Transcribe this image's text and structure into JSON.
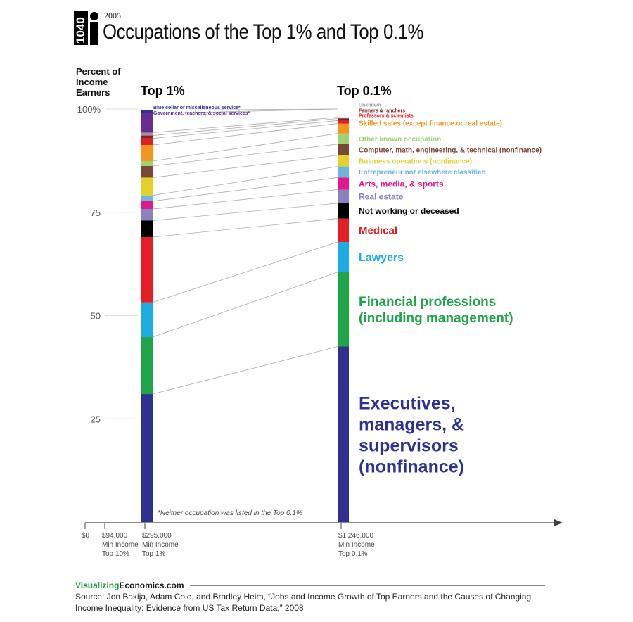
{
  "header": {
    "logo_text": "1040",
    "year": "2005",
    "title": "Occupations of the Top 1% and Top 0.1%",
    "y_axis_label_lines": [
      "Percent of",
      "Income",
      "Earners"
    ]
  },
  "chart_data": {
    "type": "stacked-bar",
    "title": "Occupations of the Top 1% and Top 0.1%",
    "ylabel": "Percent of Income Earners",
    "ylim": [
      0,
      100
    ],
    "yticks": [
      {
        "value": 25,
        "label": "25"
      },
      {
        "value": 50,
        "label": "50"
      },
      {
        "value": 75,
        "label": "75"
      },
      {
        "value": 100,
        "label": "100%"
      }
    ],
    "x_axis": {
      "origin_label": "$0",
      "ticks": [
        {
          "value": 94000,
          "lines": [
            "$94,000",
            "Min Income",
            "Top 10%"
          ]
        },
        {
          "value": 295000,
          "lines": [
            "$295,000",
            "Min Income",
            "Top 1%"
          ]
        },
        {
          "value": 1246000,
          "lines": [
            "$1,246,000",
            "Min Income",
            "Top 0.1%"
          ]
        }
      ]
    },
    "columns": [
      {
        "name": "Top 1%",
        "x_value": 295000
      },
      {
        "name": "Top 0.1%",
        "x_value": 1246000
      }
    ],
    "categories": [
      {
        "name": "Executives, managers, & supervisors (nonfinance)",
        "color": "#2e3192",
        "top1": 31.0,
        "top01": 42.5,
        "label_lines": [
          "Executives,",
          "managers, &",
          "supervisors",
          "(nonfinance)"
        ],
        "label_size": 25
      },
      {
        "name": "Financial professions (including management)",
        "color": "#1fa44a",
        "top1": 13.8,
        "top01": 18.0,
        "label_lines": [
          "Financial professions",
          "(including management)"
        ],
        "label_size": 19
      },
      {
        "name": "Lawyers",
        "color": "#1cace4",
        "top1": 8.4,
        "top01": 7.3,
        "label_lines": [
          "Lawyers"
        ],
        "label_size": 16
      },
      {
        "name": "Medical",
        "color": "#e51d25",
        "top1": 15.8,
        "top01": 5.7,
        "label_lines": [
          "Medical"
        ],
        "label_size": 15
      },
      {
        "name": "Not working or deceased",
        "color": "#000000",
        "top1": 4.0,
        "top01": 3.7,
        "label_lines": [
          "Not working or deceased"
        ],
        "label_size": 12
      },
      {
        "name": "Real estate",
        "color": "#8a82c0",
        "top1": 2.8,
        "top01": 3.3,
        "label_lines": [
          "Real estate"
        ],
        "label_size": 12
      },
      {
        "name": "Arts, media, & sports",
        "color": "#e6168c",
        "top1": 1.9,
        "top01": 2.9,
        "label_lines": [
          "Arts, media, & sports"
        ],
        "label_size": 12
      },
      {
        "name": "Entrepreneur not elsewhere classified",
        "color": "#6bb5de",
        "top1": 1.4,
        "top01": 2.7,
        "label_lines": [
          "Entrepreneur not elsewhere classified"
        ],
        "label_size": 10
      },
      {
        "name": "Business operations (nonfinance)",
        "color": "#e3d129",
        "top1": 4.3,
        "top01": 2.7,
        "label_lines": [
          "Business operations (nonfinance)"
        ],
        "label_size": 10
      },
      {
        "name": "Computer, math, engineering, & technical (nonfinance)",
        "color": "#784735",
        "top1": 2.8,
        "top01": 2.7,
        "label_lines": [
          "Computer, math, engineering, & technical (nonfinance)"
        ],
        "label_size": 10
      },
      {
        "name": "Other known occupation",
        "color": "#9dd373",
        "top1": 1.2,
        "top01": 2.6,
        "label_lines": [
          "Other known occupation"
        ],
        "label_size": 10
      },
      {
        "name": "Skilled sales (except finance or real estate)",
        "color": "#f7941d",
        "top1": 3.9,
        "top01": 2.4,
        "label_lines": [
          "Skilled sales (except finance or real estate)"
        ],
        "label_size": 10
      },
      {
        "name": "Professors & scientists",
        "color": "#e51d25",
        "top1": 1.6,
        "top01": 0.7,
        "label_lines": [
          "Professors & scientists"
        ],
        "label_size": 7
      },
      {
        "name": "Farmers & ranchers",
        "color": "#8a1c22",
        "top1": 0.7,
        "top01": 0.5,
        "label_lines": [
          "Farmers & ranchers"
        ],
        "label_size": 7
      },
      {
        "name": "Unknown",
        "color": "#999999",
        "top1": 0.7,
        "top01": 0.3,
        "label_lines": [
          "Unknown"
        ],
        "label_size": 7
      },
      {
        "name": "Government, teachers, & social services*",
        "color": "#6a2d8f",
        "top1": 4.6,
        "top01": 0,
        "label_lines": [
          "Government, teachers, & social services*"
        ],
        "label_size": 7
      },
      {
        "name": "Blue collar or miscellaneous service*",
        "color": "#2e3192",
        "top1": 0.8,
        "top01": 0,
        "label_lines": [
          "Blue collar or miscellaneous service*"
        ],
        "label_size": 7
      }
    ],
    "footnote": "*Neither occupation was listed in the Top 0.1%"
  },
  "footer": {
    "brand_part1": "Visualizing",
    "brand_part2": "Economics.com",
    "source": "Source: Jon Bakija, Adam Cole, and Bradley Heim, “Jobs and Income Growth of Top Earners and the Causes of Changing Income Inequality: Evidence from US Tax Return Data,” 2008"
  }
}
